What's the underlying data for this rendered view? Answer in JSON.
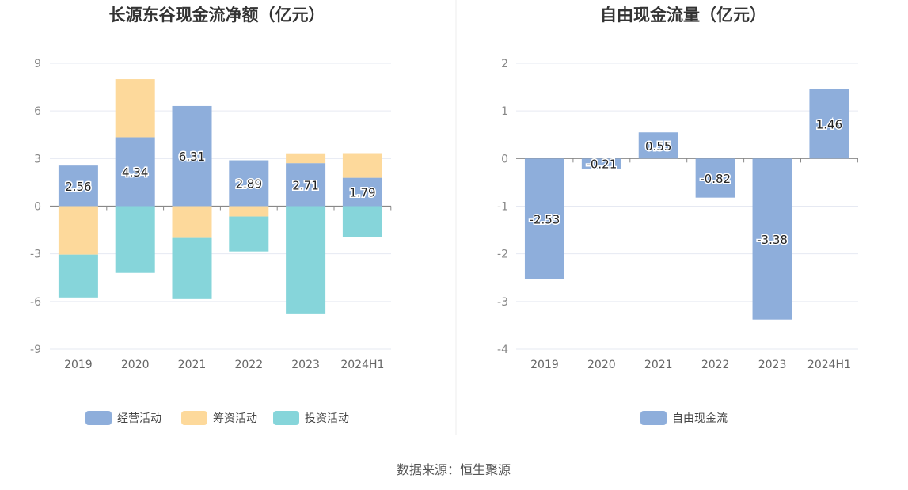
{
  "source_text": "数据来源：恒生聚源",
  "chart_data": [
    {
      "type": "bar",
      "stacked": true,
      "title": "长源东谷现金流净额（亿元）",
      "categories": [
        "2019",
        "2020",
        "2021",
        "2022",
        "2023",
        "2024H1"
      ],
      "ylim": [
        -9,
        9
      ],
      "yticks": [
        9,
        6,
        3,
        0,
        -3,
        -6,
        -9
      ],
      "ytick_labels": [
        "9",
        "6",
        "3",
        "0",
        "-3",
        "-6",
        "-9"
      ],
      "grid": true,
      "legend_position": "bottom",
      "series": [
        {
          "name": "经营活动",
          "color": "#8eaedb",
          "values": [
            2.56,
            4.34,
            6.31,
            2.89,
            2.71,
            1.79
          ],
          "labels": [
            "2.56",
            "4.34",
            "6.31",
            "2.89",
            "2.71",
            "1.79"
          ]
        },
        {
          "name": "筹资活动",
          "color": "#fdd99b",
          "values": [
            -3.05,
            3.66,
            -2.0,
            -0.65,
            0.62,
            1.55
          ]
        },
        {
          "name": "投资活动",
          "color": "#86d5da",
          "values": [
            -2.7,
            -4.2,
            -3.85,
            -2.2,
            -6.8,
            -1.95
          ]
        }
      ]
    },
    {
      "type": "bar",
      "title": "自由现金流量（亿元）",
      "categories": [
        "2019",
        "2020",
        "2021",
        "2022",
        "2023",
        "2024H1"
      ],
      "ylim": [
        -4,
        2
      ],
      "yticks": [
        2,
        1,
        0,
        -1,
        -2,
        -3,
        -4
      ],
      "ytick_labels": [
        "2",
        "1",
        "0",
        "-1",
        "-2",
        "-3",
        "-4"
      ],
      "grid": true,
      "legend_position": "bottom",
      "series": [
        {
          "name": "自由现金流",
          "color": "#8eaedb",
          "values": [
            -2.53,
            -0.21,
            0.55,
            -0.82,
            -3.38,
            1.46
          ],
          "labels": [
            "-2.53",
            "-0.21",
            "0.55",
            "-0.82",
            "-3.38",
            "1.46"
          ]
        }
      ]
    }
  ]
}
